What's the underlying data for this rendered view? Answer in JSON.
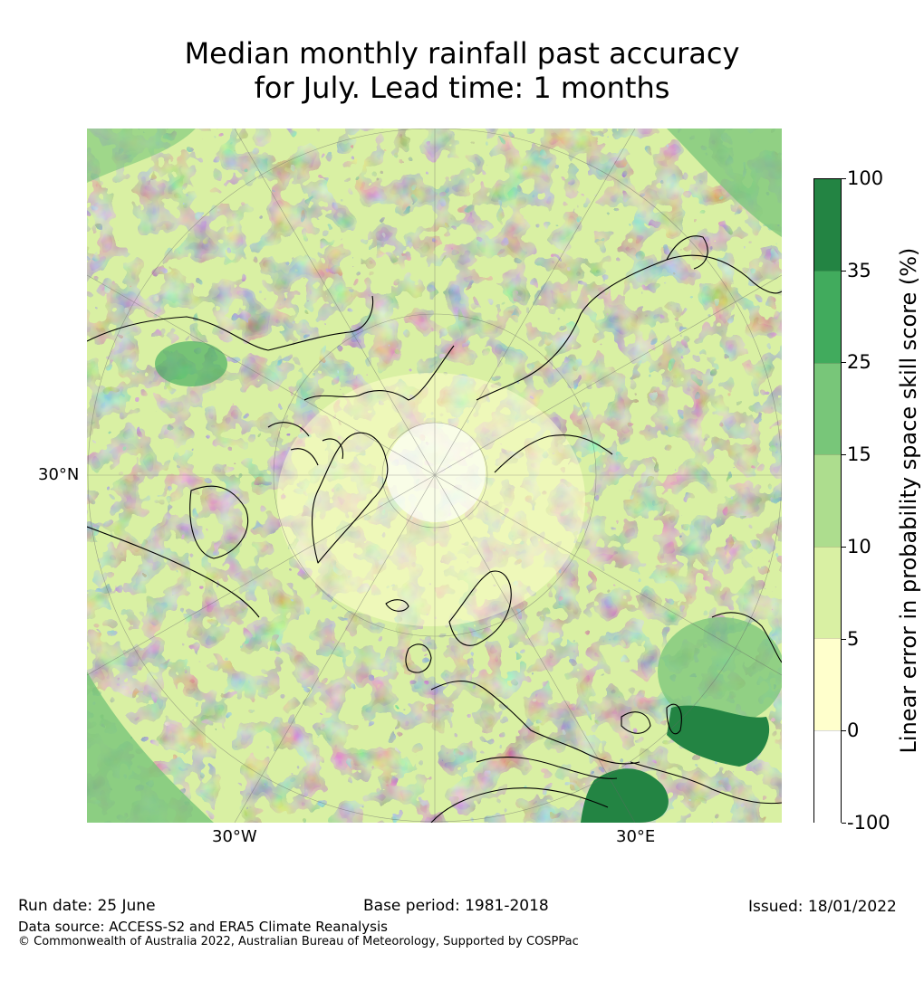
{
  "title_line1": "Median monthly rainfall past accuracy",
  "title_line2": "for July. Lead time: 1 months",
  "map": {
    "lat_label": "30°N",
    "lon_labels": [
      "30°W",
      "30°E"
    ],
    "projection": "north polar stereographic"
  },
  "colorbar": {
    "title": "Linear error in probability space skill score (%)",
    "ticks": [
      "100",
      "35",
      "25",
      "15",
      "10",
      "5",
      "0",
      "-100"
    ],
    "colors": [
      "#238443",
      "#41ab5d",
      "#78c679",
      "#addd8e",
      "#d9f0a3",
      "#ffffcc",
      "#ffffff"
    ]
  },
  "footer": {
    "run_date": "Run date: 25 June",
    "base_period": "Base period: 1981-2018",
    "issued": "Issued: 18/01/2022",
    "data_source": "Data source: ACCESS-S2 and ERA5 Climate Reanalysis",
    "copyright": "© Commonwealth of Australia 2022, Australian Bureau of Meteorology, Supported by COSPPac"
  }
}
